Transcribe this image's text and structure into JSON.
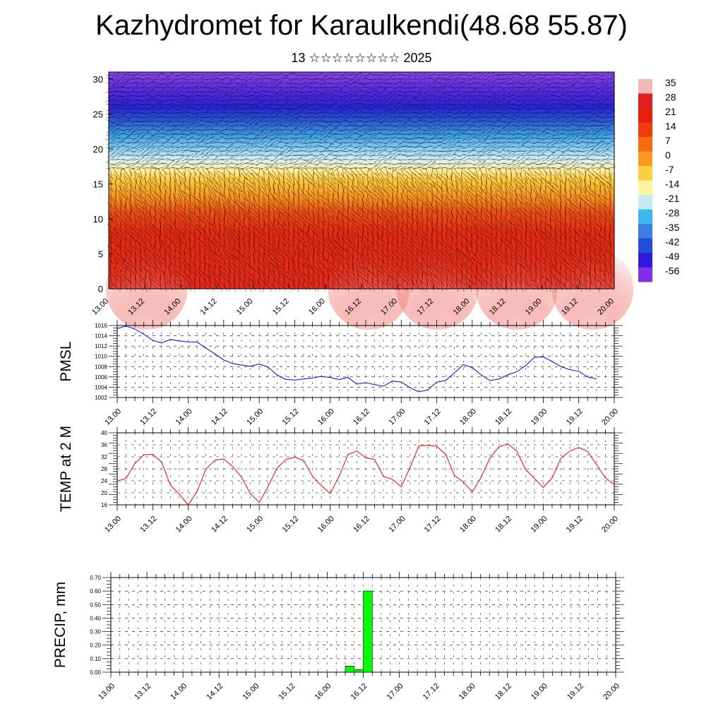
{
  "title": "Kazhydromet for Karaulkendi(48.68 55.87)",
  "subtitle": "13 ☆☆☆☆☆☆☆☆ 2025",
  "x_tick_labels": [
    "13.00",
    "13.12",
    "14.00",
    "14.12",
    "15.00",
    "15.12",
    "16.00",
    "16.12",
    "17.00",
    "17.12",
    "18.00",
    "18.12",
    "19.00",
    "19.12",
    "20.00"
  ],
  "colors": {
    "pmsl_line": "#0000ff",
    "temp_line": "#ff0000",
    "precip_bar": "#00ff00"
  },
  "chart_data": [
    {
      "type": "heatmap",
      "panel": "cross-section",
      "title": "",
      "xlabel": "",
      "ylabel": "",
      "ylim": [
        0,
        31
      ],
      "y_ticks": [
        0,
        5,
        10,
        15,
        20,
        25,
        30
      ],
      "x": [
        "13.00",
        "13.12",
        "14.00",
        "14.12",
        "15.00",
        "15.12",
        "16.00",
        "16.12",
        "17.00",
        "17.12",
        "18.00",
        "18.12",
        "19.00",
        "19.12",
        "20.00"
      ],
      "colorbar_labels": [
        "35",
        "28",
        "21",
        "14",
        "7",
        "0",
        "-7",
        "-14",
        "-21",
        "-28",
        "-35",
        "-42",
        "-49",
        "-56"
      ],
      "colorbar_colors": [
        "#f5b8b8",
        "#e02020",
        "#e62010",
        "#f03c0c",
        "#f66a10",
        "#fa9a1e",
        "#fdd040",
        "#fdf5a0",
        "#c8e8f5",
        "#3cb8f0",
        "#3a80e0",
        "#2050d8",
        "#3018e0",
        "#8030e8"
      ],
      "wind_barbs": true,
      "grid": false
    },
    {
      "type": "line",
      "panel": "PMSL",
      "title": "",
      "xlabel": "",
      "ylabel": "PMSL",
      "ylim": [
        1002,
        1016
      ],
      "y_ticks": [
        1002,
        1004,
        1006,
        1008,
        1010,
        1012,
        1014,
        1016
      ],
      "y_tick_labels": [
        "1002",
        "1004",
        "1006",
        "1008",
        "1010",
        "1012",
        "1014",
        "1016"
      ],
      "x_step_hours": 3,
      "values": [
        1015.4,
        1015.9,
        1015.3,
        1014.3,
        1013.1,
        1012.6,
        1013.3,
        1013.0,
        1012.8,
        1012.8,
        1011.6,
        1010.5,
        1009.3,
        1008.6,
        1008.3,
        1008.1,
        1008.5,
        1007.9,
        1006.4,
        1005.5,
        1005.4,
        1005.6,
        1005.8,
        1006.1,
        1005.9,
        1005.5,
        1005.9,
        1004.6,
        1004.9,
        1004.5,
        1004.2,
        1005.2,
        1005.0,
        1003.9,
        1003.1,
        1003.5,
        1005.0,
        1005.3,
        1006.8,
        1008.4,
        1007.8,
        1006.4,
        1005.3,
        1005.6,
        1006.4,
        1007.0,
        1008.2,
        1009.8,
        1009.9,
        1009.0,
        1008.0,
        1007.4,
        1007.1,
        1006.0,
        1005.6
      ],
      "grid": true
    },
    {
      "type": "line",
      "panel": "TEMP",
      "title": "",
      "xlabel": "",
      "ylabel": "TEMP at 2 M",
      "ylim": [
        16,
        40
      ],
      "y_ticks": [
        16,
        20,
        24,
        28,
        32,
        36,
        40
      ],
      "y_tick_labels": [
        "16",
        "20",
        "24",
        "28",
        "32",
        "36",
        "40"
      ],
      "x_step_hours": 3,
      "values": [
        23.9,
        24.8,
        29.8,
        32.7,
        32.8,
        30.2,
        22.6,
        19.5,
        16.0,
        20.5,
        27.9,
        30.9,
        31.3,
        28.8,
        25.2,
        19.7,
        16.8,
        22.1,
        28.2,
        31.1,
        31.9,
        30.8,
        25.5,
        22.4,
        19.8,
        25.5,
        32.8,
        33.9,
        31.7,
        31.1,
        25.5,
        24.5,
        22.0,
        28.6,
        35.7,
        35.8,
        35.5,
        32.9,
        25.8,
        23.6,
        20.3,
        25.1,
        31.7,
        35.3,
        36.3,
        34.0,
        27.8,
        24.8,
        21.8,
        25.0,
        31.6,
        33.9,
        35.1,
        33.8,
        29.4,
        25.0,
        22.7
      ],
      "grid": true
    },
    {
      "type": "bar",
      "panel": "PRECIP",
      "title": "",
      "xlabel": "",
      "ylabel": "PRECIP, mm",
      "ylim": [
        0,
        0.7
      ],
      "y_ticks": [
        0,
        0.1,
        0.2,
        0.3,
        0.4,
        0.5,
        0.6,
        0.7
      ],
      "y_tick_labels": [
        "0.00",
        "0.10",
        "0.20",
        "0.30",
        "0.40",
        "0.50",
        "0.60",
        "0.70"
      ],
      "x_step_hours": 3,
      "bars": [
        {
          "start_hour": 78,
          "value": 0.045
        },
        {
          "start_hour": 81,
          "value": 0.02
        },
        {
          "start_hour": 84,
          "value": 0.6
        }
      ],
      "grid": true
    }
  ]
}
